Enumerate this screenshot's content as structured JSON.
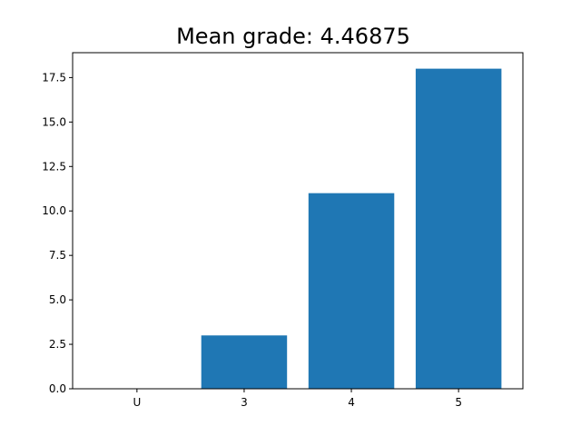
{
  "chart_data": {
    "type": "bar",
    "title": "Mean grade: 4.46875",
    "xlabel": "",
    "ylabel": "",
    "categories": [
      "U",
      "3",
      "4",
      "5"
    ],
    "values": [
      0,
      3,
      11,
      18
    ],
    "ylim": [
      0,
      18.9
    ],
    "yticks": [
      0.0,
      2.5,
      5.0,
      7.5,
      10.0,
      12.5,
      15.0,
      17.5
    ],
    "ytick_labels": [
      "0.0",
      "2.5",
      "5.0",
      "7.5",
      "10.0",
      "12.5",
      "15.0",
      "17.5"
    ],
    "bar_color": "#1f77b4",
    "grid": false,
    "legend": "none"
  }
}
